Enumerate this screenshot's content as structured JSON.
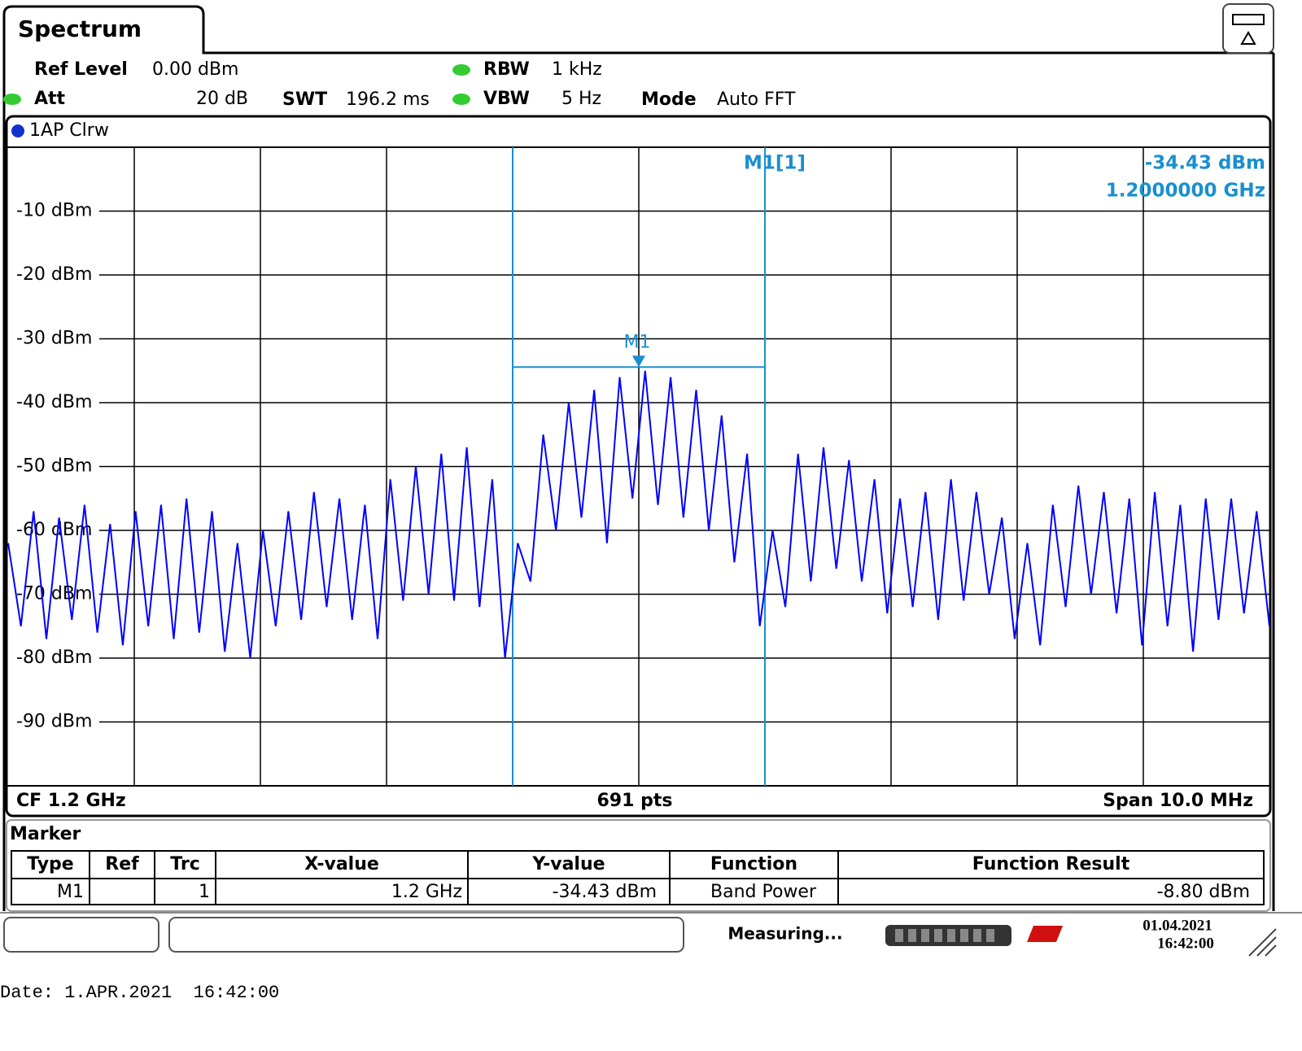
{
  "header": {
    "tab": "Spectrum"
  },
  "settings": {
    "ref_level_label": "Ref Level",
    "ref_level": "0.00 dBm",
    "att_label": "Att",
    "att": "20 dB",
    "swt_label": "SWT",
    "swt": "196.2 ms",
    "rbw_label": "RBW",
    "rbw": "1 kHz",
    "vbw_label": "VBW",
    "vbw": "5 Hz",
    "mode_label": "Mode",
    "mode": "Auto FFT"
  },
  "chart_data": {
    "type": "line",
    "trace_label": "1AP Clrw",
    "ylim": [
      -100,
      0
    ],
    "yticks": [
      {
        "value": -10,
        "label": "-10 dBm"
      },
      {
        "value": -20,
        "label": "-20 dBm"
      },
      {
        "value": -30,
        "label": "-30 dBm"
      },
      {
        "value": -40,
        "label": "-40 dBm"
      },
      {
        "value": -50,
        "label": "-50 dBm"
      },
      {
        "value": -60,
        "label": "-60 dBm"
      },
      {
        "value": -70,
        "label": "-70 dBm"
      },
      {
        "value": -80,
        "label": "-80 dBm"
      },
      {
        "value": -90,
        "label": "-90 dBm"
      }
    ],
    "grid": true,
    "series": [
      {
        "color": "#0000ff",
        "values": [
          -62,
          -75,
          -57,
          -77,
          -58,
          -74,
          -56,
          -76,
          -59,
          -78,
          -57,
          -75,
          -56,
          -77,
          -55,
          -76,
          -57,
          -79,
          -62,
          -80,
          -60,
          -75,
          -57,
          -74,
          -54,
          -72,
          -55,
          -74,
          -56,
          -77,
          -52,
          -71,
          -50,
          -70,
          -48,
          -71,
          -47,
          -72,
          -52,
          -80,
          -62,
          -68,
          -45,
          -60,
          -40,
          -58,
          -38,
          -62,
          -36,
          -55,
          -35,
          -56,
          -36,
          -58,
          -38,
          -60,
          -42,
          -65,
          -48,
          -75,
          -60,
          -72,
          -48,
          -68,
          -47,
          -66,
          -49,
          -68,
          -52,
          -73,
          -55,
          -72,
          -54,
          -74,
          -52,
          -71,
          -54,
          -70,
          -58,
          -77,
          -62,
          -78,
          -56,
          -72,
          -53,
          -70,
          -54,
          -73,
          -55,
          -78,
          -54,
          -75,
          -56,
          -79,
          -55,
          -74,
          -55,
          -73,
          -57,
          -75
        ]
      }
    ],
    "marker": {
      "label": "M1",
      "readout_label": "M1[1]",
      "value": -34.43,
      "value_label": "-34.43 dBm",
      "frequency": "1.2000000 GHz"
    },
    "footer": {
      "center_frequency": "CF 1.2 GHz",
      "points": "691 pts",
      "span": "Span 10.0 MHz"
    }
  },
  "marker_table": {
    "title": "Marker",
    "columns": [
      "Type",
      "Ref",
      "Trc",
      "X-value",
      "Y-value",
      "Function",
      "Function Result"
    ],
    "rows": [
      {
        "type": "M1",
        "trc": "1",
        "x_value": "1.2 GHz",
        "y_value": "-34.43 dBm",
        "function": "Band Power",
        "function_result": "-8.80 dBm"
      }
    ]
  },
  "status": {
    "state": "Measuring...",
    "date": "01.04.2021",
    "time": "16:42:00"
  },
  "print_footer": "Date: 1.APR.2021  16:42:00"
}
